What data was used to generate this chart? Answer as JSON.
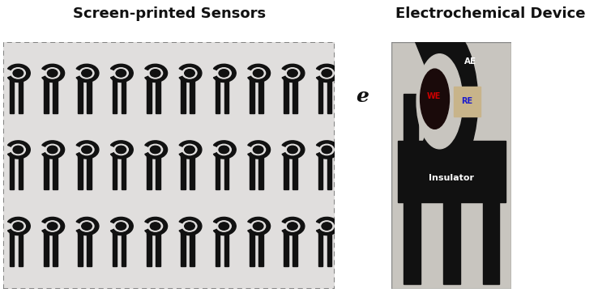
{
  "title_left": "Screen-printed Sensors",
  "title_right": "Electrochemical Device",
  "label_e": "e",
  "bg_color": "#ffffff",
  "title_fontsize": 13,
  "label_e_fontsize": 18,
  "fig_width": 7.38,
  "fig_height": 3.72,
  "dpi": 100,
  "left_panel": {
    "substrate_color": "#e0dedd",
    "border_color": "#666666",
    "sensor_color": "#111111",
    "rows": 3,
    "cols": 10
  },
  "right_panel": {
    "substrate_color": "#c8c5bf",
    "device_color": "#111111",
    "AE_label": "AE",
    "WE_label": "WE",
    "RE_label": "RE",
    "insulator_label": "Insulator",
    "AE_color": "#ffffff",
    "WE_color": "#cc0000",
    "RE_color": "#1a1acc",
    "insulator_color": "#ffffff",
    "beige_color": "#c8b48a"
  }
}
